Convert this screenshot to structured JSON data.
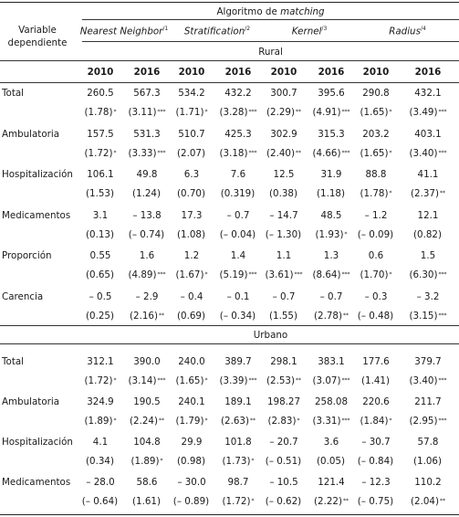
{
  "header": {
    "variable_line1": "Variable",
    "variable_line2": "dependiente",
    "algorithm_prefix": "Algoritmo de ",
    "algorithm_italic": "matching",
    "methods": [
      {
        "name": "Nearest Neighbor",
        "note": "/1"
      },
      {
        "name": "Stratification",
        "note": "/2"
      },
      {
        "name": "Kernel",
        "note": "/3"
      },
      {
        "name": "Radius",
        "note": "/4"
      }
    ],
    "years": [
      "2010",
      "2016",
      "2010",
      "2016",
      "2010",
      "2016",
      "2010",
      "2016"
    ]
  },
  "sections": [
    {
      "title": "Rural",
      "rows": [
        {
          "label": "Total",
          "values": [
            "260.5",
            "567.3",
            "534.2",
            "432.2",
            "300.7",
            "395.6",
            "290.8",
            "432.1"
          ],
          "stats": [
            "(1.78)",
            "(3.11)",
            "(1.71)",
            "(3.28)",
            "(2.29)",
            "(4.91)",
            "(1.65)",
            "(3.49)"
          ],
          "stars": [
            "*",
            "***",
            "*",
            "***",
            "**",
            "***",
            "*",
            "***"
          ]
        },
        {
          "label": "Ambulatoria",
          "values": [
            "157.5",
            "531.3",
            "510.7",
            "425.3",
            "302.9",
            "315.3",
            "203.2",
            "403.1"
          ],
          "stats": [
            "(1.72)",
            "(3.33)",
            "(2.07)",
            "(3.18)",
            "(2.40)",
            "(4.66)",
            "(1.65)",
            "(3.40)"
          ],
          "stars": [
            "*",
            "***",
            "",
            "***",
            "**",
            "***",
            "*",
            "***"
          ]
        },
        {
          "label": "Hospitalización",
          "values": [
            "106.1",
            "49.8",
            "6.3",
            "7.6",
            "12.5",
            "31.9",
            "88.8",
            "41.1"
          ],
          "stats": [
            "(1.53)",
            "(1.24)",
            "(0.70)",
            "(0.319)",
            "(0.38)",
            "(1.18)",
            "(1.78)",
            "(2.37)"
          ],
          "stars": [
            "",
            "",
            "",
            "",
            "",
            "",
            "*",
            "**"
          ]
        },
        {
          "label": "Medicamentos",
          "values": [
            "3.1",
            "– 13.8",
            "17.3",
            "– 0.7",
            "– 14.7",
            "48.5",
            "– 1.2",
            "12.1"
          ],
          "stats": [
            "(0.13)",
            "(– 0.74)",
            "(1.08)",
            "(– 0.04)",
            "(– 1.30)",
            "(1.93)",
            "(– 0.09)",
            "(0.82)"
          ],
          "stars": [
            "",
            "",
            "",
            "",
            "",
            "*",
            "",
            ""
          ]
        },
        {
          "label": "Proporción",
          "values": [
            "0.55",
            "1.6",
            "1.2",
            "1.4",
            "1.1",
            "1.3",
            "0.6",
            "1.5"
          ],
          "stats": [
            "(0.65)",
            "(4.89)",
            "(1.67)",
            "(5.19)",
            "(3.61)",
            "(8.64)",
            "(1.70)",
            "(6.30)"
          ],
          "stars": [
            "",
            "***",
            "*",
            "***",
            "***",
            "***",
            "*",
            "***"
          ]
        },
        {
          "label": "Carencia",
          "values": [
            "– 0.5",
            "– 2.9",
            "– 0.4",
            "– 0.1",
            "– 0.7",
            "– 0.7",
            "– 0.3",
            "– 3.2"
          ],
          "stats": [
            "(0.25)",
            "(2.16)",
            "(0.69)",
            "(– 0.34)",
            "(1.55)",
            "(2.78)",
            "(– 0.48)",
            "(3.15)"
          ],
          "stars": [
            "",
            "**",
            "",
            "",
            "",
            "**",
            "",
            "***"
          ]
        }
      ]
    },
    {
      "title": "Urbano",
      "rows": [
        {
          "label": "Total",
          "values": [
            "312.1",
            "390.0",
            "240.0",
            "389.7",
            "298.1",
            "383.1",
            "177.6",
            "379.7"
          ],
          "stats": [
            "(1.72)",
            "(3.14)",
            "(1.65)",
            "(3.39)",
            "(2.53)",
            "(3.07)",
            "(1.41)",
            "(3.40)"
          ],
          "stars": [
            "*",
            "***",
            "*",
            "***",
            "**",
            "***",
            "",
            "***"
          ]
        },
        {
          "label": "Ambulatoria",
          "values": [
            "324.9",
            "190.5",
            "240.1",
            "189.1",
            "198.27",
            "258.08",
            "220.6",
            "211.7"
          ],
          "stats": [
            "(1.89)",
            "(2.24)",
            "(1.79)",
            "(2.63)",
            "(2.83)",
            "(3.31)",
            "(1.84)",
            "(2.95)"
          ],
          "stars": [
            "*",
            "**",
            "*",
            "**",
            "*",
            "***",
            "*",
            "***"
          ]
        },
        {
          "label": "Hospitalización",
          "values": [
            "4.1",
            "104.8",
            "29.9",
            "101.8",
            "– 20.7",
            "3.6",
            "– 30.7",
            "57.8"
          ],
          "stats": [
            "(0.34)",
            "(1.89)",
            "(0.98)",
            "(1.73)",
            "(– 0.51)",
            "(0.05)",
            "(– 0.84)",
            "(1.06)"
          ],
          "stars": [
            "",
            "*",
            "",
            "*",
            "",
            "",
            "",
            ""
          ]
        },
        {
          "label": "Medicamentos",
          "values": [
            "– 28.0",
            "58.6",
            "– 30.0",
            "98.7",
            "– 10.5",
            "121.4",
            "– 12.3",
            "110.2"
          ],
          "stats": [
            "(– 0.64)",
            "(1.61)",
            "(– 0.89)",
            "(1.72)",
            "(– 0.62)",
            "(2.22)",
            "(– 0.75)",
            "(2.04)"
          ],
          "stars": [
            "",
            "",
            "",
            "*",
            "",
            "**",
            "",
            "**"
          ]
        }
      ]
    }
  ]
}
